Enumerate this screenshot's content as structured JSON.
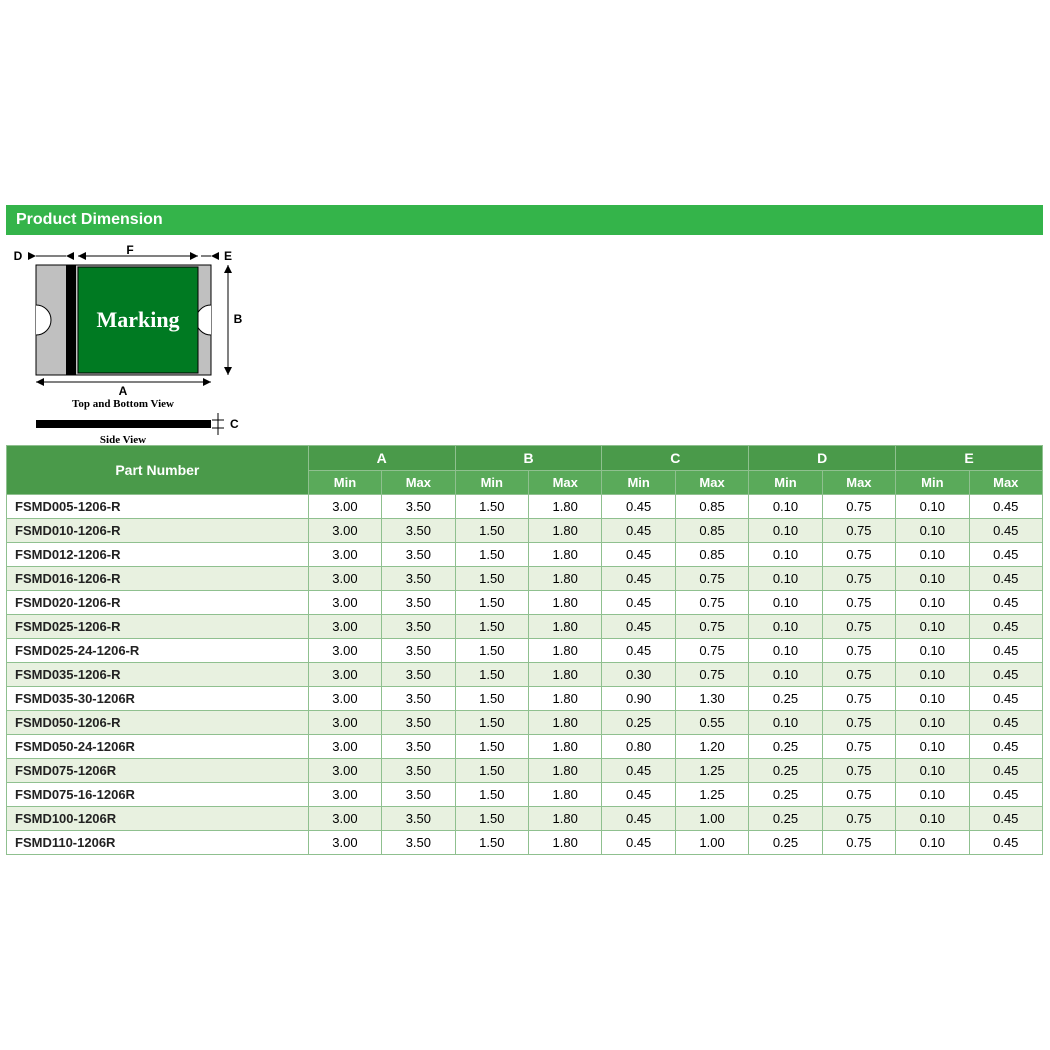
{
  "section": {
    "title": "Product Dimension"
  },
  "diagram": {
    "marking_text": "Marking",
    "top_label": "Top and Bottom View",
    "side_label": "Side View",
    "dim_labels": {
      "A": "A",
      "B": "B",
      "C": "C",
      "D": "D",
      "E": "E",
      "F": "F"
    },
    "colors": {
      "body": "#007a22",
      "pad": "#c0c0c0",
      "stroke": "#000000",
      "text": "#ffffff"
    }
  },
  "table": {
    "header": {
      "part": "Part Number",
      "groups": [
        "A",
        "B",
        "C",
        "D",
        "E"
      ],
      "min": "Min",
      "max": "Max"
    },
    "colors": {
      "header_bg": "#4a9a4a",
      "subheader_bg": "#5aaa5a",
      "header_fg": "#ffffff",
      "border": "#8fc08f",
      "row_odd": "#ffffff",
      "row_even": "#e8f1e0"
    },
    "rows": [
      {
        "part": "FSMD005-1206-R",
        "vals": [
          "3.00",
          "3.50",
          "1.50",
          "1.80",
          "0.45",
          "0.85",
          "0.10",
          "0.75",
          "0.10",
          "0.45"
        ]
      },
      {
        "part": "FSMD010-1206-R",
        "vals": [
          "3.00",
          "3.50",
          "1.50",
          "1.80",
          "0.45",
          "0.85",
          "0.10",
          "0.75",
          "0.10",
          "0.45"
        ]
      },
      {
        "part": "FSMD012-1206-R",
        "vals": [
          "3.00",
          "3.50",
          "1.50",
          "1.80",
          "0.45",
          "0.85",
          "0.10",
          "0.75",
          "0.10",
          "0.45"
        ]
      },
      {
        "part": "FSMD016-1206-R",
        "vals": [
          "3.00",
          "3.50",
          "1.50",
          "1.80",
          "0.45",
          "0.75",
          "0.10",
          "0.75",
          "0.10",
          "0.45"
        ]
      },
      {
        "part": "FSMD020-1206-R",
        "vals": [
          "3.00",
          "3.50",
          "1.50",
          "1.80",
          "0.45",
          "0.75",
          "0.10",
          "0.75",
          "0.10",
          "0.45"
        ]
      },
      {
        "part": "FSMD025-1206-R",
        "vals": [
          "3.00",
          "3.50",
          "1.50",
          "1.80",
          "0.45",
          "0.75",
          "0.10",
          "0.75",
          "0.10",
          "0.45"
        ]
      },
      {
        "part": "FSMD025-24-1206-R",
        "vals": [
          "3.00",
          "3.50",
          "1.50",
          "1.80",
          "0.45",
          "0.75",
          "0.10",
          "0.75",
          "0.10",
          "0.45"
        ]
      },
      {
        "part": "FSMD035-1206-R",
        "vals": [
          "3.00",
          "3.50",
          "1.50",
          "1.80",
          "0.30",
          "0.75",
          "0.10",
          "0.75",
          "0.10",
          "0.45"
        ]
      },
      {
        "part": "FSMD035-30-1206R",
        "vals": [
          "3.00",
          "3.50",
          "1.50",
          "1.80",
          "0.90",
          "1.30",
          "0.25",
          "0.75",
          "0.10",
          "0.45"
        ]
      },
      {
        "part": "FSMD050-1206-R",
        "vals": [
          "3.00",
          "3.50",
          "1.50",
          "1.80",
          "0.25",
          "0.55",
          "0.10",
          "0.75",
          "0.10",
          "0.45"
        ]
      },
      {
        "part": "FSMD050-24-1206R",
        "vals": [
          "3.00",
          "3.50",
          "1.50",
          "1.80",
          "0.80",
          "1.20",
          "0.25",
          "0.75",
          "0.10",
          "0.45"
        ]
      },
      {
        "part": "FSMD075-1206R",
        "vals": [
          "3.00",
          "3.50",
          "1.50",
          "1.80",
          "0.45",
          "1.25",
          "0.25",
          "0.75",
          "0.10",
          "0.45"
        ]
      },
      {
        "part": "FSMD075-16-1206R",
        "vals": [
          "3.00",
          "3.50",
          "1.50",
          "1.80",
          "0.45",
          "1.25",
          "0.25",
          "0.75",
          "0.10",
          "0.45"
        ]
      },
      {
        "part": "FSMD100-1206R",
        "vals": [
          "3.00",
          "3.50",
          "1.50",
          "1.80",
          "0.45",
          "1.00",
          "0.25",
          "0.75",
          "0.10",
          "0.45"
        ]
      },
      {
        "part": "FSMD110-1206R",
        "vals": [
          "3.00",
          "3.50",
          "1.50",
          "1.80",
          "0.45",
          "1.00",
          "0.25",
          "0.75",
          "0.10",
          "0.45"
        ]
      }
    ]
  }
}
